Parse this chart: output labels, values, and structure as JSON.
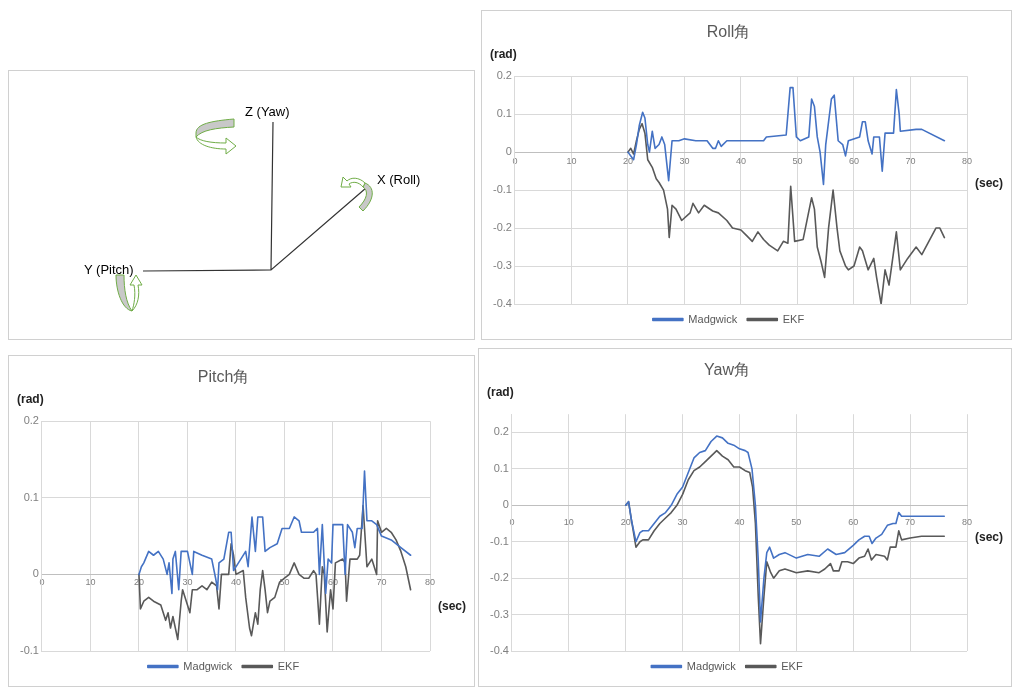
{
  "chart_data": [
    {
      "type": "other",
      "annotations": [
        "Z (Yaw)",
        "X (Roll)",
        "Y (Pitch)"
      ]
    },
    {
      "type": "line",
      "title": "Roll角",
      "xlabel": "(sec)",
      "ylabel": "(rad)",
      "xlim": [
        0,
        80
      ],
      "xticks": [
        0,
        10,
        20,
        30,
        40,
        50,
        60,
        70,
        80
      ],
      "ylim": [
        -0.4,
        0.2
      ],
      "yticks": [
        -0.4,
        -0.3,
        -0.2,
        -0.1,
        0,
        0.1,
        0.2
      ],
      "grid": true,
      "legend": "bottom",
      "marker": "none",
      "series": [
        {
          "name": "Madgwick",
          "color": "#4472c4",
          "x": [
            20,
            20.5,
            21,
            21.5,
            22,
            22.6,
            23,
            23.5,
            23.8,
            24.3,
            24.8,
            25.5,
            26,
            26.5,
            27.2,
            27.8,
            29,
            30,
            32,
            34,
            35,
            35.5,
            36,
            36.5,
            37.5,
            40,
            44,
            44.5,
            48,
            48.7,
            49.2,
            49.8,
            50.5,
            52,
            52.5,
            53,
            53.5,
            54,
            54.6,
            55,
            56,
            56.5,
            57.2,
            58,
            58.5,
            59,
            61,
            61.5,
            62,
            62.5,
            63.2,
            63.5,
            64.5,
            65,
            65.5,
            67,
            67.5,
            68,
            68.2,
            71,
            72,
            76
          ],
          "values": [
            0,
            -0.01,
            -0.02,
            0.02,
            0.07,
            0.105,
            0.09,
            0.02,
            0.0,
            0.055,
            0.01,
            0.02,
            0.04,
            0.02,
            -0.075,
            0.03,
            0.03,
            0.035,
            0.03,
            0.03,
            0.01,
            0.01,
            0.03,
            0.015,
            0.03,
            0.03,
            0.03,
            0.04,
            0.045,
            0.17,
            0.17,
            0.04,
            0.03,
            0.04,
            0.14,
            0.12,
            0.04,
            0.0,
            -0.085,
            0.02,
            0.14,
            0.15,
            0.03,
            0.02,
            -0.01,
            0.03,
            0.04,
            0.08,
            0.08,
            0.03,
            -0.005,
            0.04,
            0.04,
            -0.05,
            0.05,
            0.05,
            0.165,
            0.1,
            0.055,
            0.06,
            0.06,
            0.03
          ]
        },
        {
          "name": "EKF",
          "color": "#595959",
          "x": [
            20,
            20.5,
            21,
            21.5,
            22,
            22.5,
            23,
            23.5,
            24.3,
            25,
            25.5,
            26.3,
            27,
            27.3,
            27.8,
            28.5,
            29.5,
            31,
            31.5,
            32.5,
            33.5,
            35,
            36,
            37.5,
            38.5,
            40,
            41,
            42,
            43,
            44,
            45,
            46.5,
            47.5,
            48.3,
            48.8,
            49.5,
            51,
            52.5,
            53,
            53.5,
            54.2,
            54.8,
            55.5,
            56.3,
            57,
            57.5,
            58.5,
            59,
            60,
            61,
            61.5,
            62.5,
            63.5,
            64,
            64.8,
            65.5,
            66.2,
            67.5,
            68.2,
            69.5,
            71,
            72,
            74.5,
            75.2,
            76
          ],
          "values": [
            0,
            0.01,
            -0.005,
            0.03,
            0.06,
            0.075,
            0.05,
            -0.02,
            -0.04,
            -0.07,
            -0.08,
            -0.1,
            -0.15,
            -0.225,
            -0.14,
            -0.15,
            -0.18,
            -0.16,
            -0.135,
            -0.16,
            -0.14,
            -0.155,
            -0.16,
            -0.18,
            -0.2,
            -0.205,
            -0.22,
            -0.235,
            -0.21,
            -0.23,
            -0.245,
            -0.26,
            -0.235,
            -0.24,
            -0.09,
            -0.235,
            -0.23,
            -0.12,
            -0.15,
            -0.25,
            -0.29,
            -0.33,
            -0.2,
            -0.1,
            -0.2,
            -0.26,
            -0.3,
            -0.31,
            -0.3,
            -0.25,
            -0.26,
            -0.31,
            -0.28,
            -0.33,
            -0.4,
            -0.31,
            -0.35,
            -0.21,
            -0.31,
            -0.28,
            -0.25,
            -0.27,
            -0.2,
            -0.2,
            -0.225
          ]
        }
      ]
    },
    {
      "type": "line",
      "title": "Pitch角",
      "xlabel": "(sec)",
      "ylabel": "(rad)",
      "xlim": [
        0,
        80
      ],
      "xticks": [
        0,
        10,
        20,
        30,
        40,
        50,
        60,
        70,
        80
      ],
      "ylim": [
        -0.1,
        0.2
      ],
      "yticks": [
        -0.1,
        0,
        0.1,
        0.2
      ],
      "grid": true,
      "legend": "bottom",
      "marker": "none",
      "series": [
        {
          "name": "Madgwick",
          "color": "#4472c4",
          "x": [
            20,
            20.5,
            21,
            22,
            23,
            24,
            25,
            25.8,
            26.2,
            26.8,
            27,
            27.5,
            28.2,
            28.7,
            30,
            31,
            31.3,
            33,
            35,
            35.8,
            36.2,
            36.5,
            37.5,
            38.5,
            39,
            39.5,
            41,
            42,
            42.5,
            43.3,
            44,
            44.5,
            45.5,
            46,
            47,
            48.5,
            49.5,
            51,
            52,
            53,
            53.5,
            56,
            56.8,
            57.2,
            57.8,
            58.5,
            59,
            59.7,
            60,
            62,
            62.5,
            63,
            64,
            64.5,
            65,
            66,
            66.5,
            67,
            68,
            69,
            70,
            72,
            74,
            76
          ],
          "values": [
            0,
            0.01,
            0.015,
            0.03,
            0.025,
            0.03,
            0.02,
            0.0,
            0.015,
            -0.025,
            0.02,
            0.03,
            -0.02,
            0.03,
            0.03,
            0.0,
            0.03,
            0.025,
            0.02,
            -0.005,
            -0.02,
            0.015,
            0.02,
            0.055,
            0.055,
            0.005,
            0.02,
            0.03,
            0.01,
            0.075,
            0.03,
            0.075,
            0.075,
            0.03,
            0.035,
            0.04,
            0.06,
            0.06,
            0.075,
            0.07,
            0.055,
            0.055,
            0.06,
            0.0,
            0.065,
            -0.025,
            0.02,
            0.015,
            0.065,
            0.065,
            0.0,
            0.065,
            0.055,
            0.035,
            0.06,
            0.06,
            0.135,
            0.07,
            0.07,
            0.065,
            0.05,
            0.045,
            0.035,
            0.025
          ]
        },
        {
          "name": "EKF",
          "color": "#595959",
          "x": [
            20,
            20.3,
            21,
            22,
            23,
            24.5,
            25.5,
            26,
            26.5,
            27,
            28,
            28.7,
            29,
            30,
            30.5,
            31,
            32,
            33,
            34,
            35,
            36,
            36.5,
            37,
            38.5,
            39,
            39.5,
            40,
            41.5,
            42,
            42.8,
            43.2,
            44,
            44.5,
            45,
            45.5,
            46,
            46.5,
            47,
            48,
            49,
            50,
            51,
            52,
            53,
            54,
            55,
            56,
            56.5,
            57.2,
            57.8,
            58.2,
            58.8,
            59.5,
            60,
            60.5,
            62,
            62.5,
            62.8,
            63.5,
            65,
            65.5,
            66.2,
            66.7,
            67,
            68,
            69,
            69.2,
            70,
            71,
            72,
            73,
            74,
            75,
            76
          ],
          "values": [
            0,
            -0.045,
            -0.035,
            -0.03,
            -0.035,
            -0.04,
            -0.06,
            -0.05,
            -0.07,
            -0.055,
            -0.085,
            -0.035,
            -0.02,
            -0.04,
            -0.05,
            -0.02,
            -0.02,
            -0.015,
            -0.02,
            -0.01,
            -0.015,
            -0.045,
            0.0,
            0.0,
            0.04,
            0.025,
            0.0,
            0.005,
            -0.03,
            -0.07,
            -0.08,
            -0.05,
            -0.065,
            -0.02,
            0.005,
            -0.02,
            -0.05,
            -0.035,
            -0.03,
            -0.01,
            -0.005,
            0.0,
            0.015,
            0.0,
            -0.005,
            -0.005,
            0.005,
            0.0,
            -0.065,
            0.01,
            0.0,
            -0.075,
            -0.02,
            -0.045,
            0.015,
            0.02,
            0.015,
            -0.035,
            0.02,
            0.02,
            0.025,
            0.09,
            0.04,
            0.01,
            0.02,
            0.0,
            0.07,
            0.055,
            0.06,
            0.055,
            0.045,
            0.03,
            0.01,
            -0.02
          ]
        }
      ]
    },
    {
      "type": "line",
      "title": "Yaw角",
      "xlabel": "(sec)",
      "ylabel": "(rad)",
      "xlim": [
        0,
        80
      ],
      "xticks": [
        0,
        10,
        20,
        30,
        40,
        50,
        60,
        70,
        80
      ],
      "ylim": [
        -0.4,
        0.25
      ],
      "yticks": [
        -0.4,
        -0.3,
        -0.2,
        -0.1,
        0,
        0.1,
        0.2
      ],
      "grid": true,
      "legend": "bottom",
      "marker": "none",
      "series": [
        {
          "name": "Madgwick",
          "color": "#4472c4",
          "x": [
            20,
            20.5,
            21,
            21.8,
            22.5,
            23,
            24,
            25,
            26,
            27,
            28,
            29,
            30,
            31,
            32,
            33,
            34,
            35,
            36,
            37,
            38,
            39,
            40,
            41,
            41.5,
            42.2,
            42.8,
            43.3,
            43.7,
            44.3,
            44.8,
            45.3,
            46,
            47,
            48,
            50,
            52,
            54,
            55.5,
            57,
            58.5,
            60,
            61,
            62,
            62.8,
            63.3,
            64,
            65,
            66,
            67,
            67.5,
            68,
            68.5,
            70,
            76
          ],
          "values": [
            0,
            0.01,
            -0.04,
            -0.1,
            -0.075,
            -0.07,
            -0.07,
            -0.05,
            -0.03,
            -0.02,
            0.0,
            0.03,
            0.05,
            0.09,
            0.13,
            0.145,
            0.15,
            0.175,
            0.19,
            0.185,
            0.17,
            0.165,
            0.155,
            0.15,
            0.145,
            0.1,
            0.0,
            -0.15,
            -0.32,
            -0.2,
            -0.13,
            -0.115,
            -0.145,
            -0.135,
            -0.13,
            -0.145,
            -0.135,
            -0.14,
            -0.12,
            -0.135,
            -0.13,
            -0.11,
            -0.095,
            -0.085,
            -0.085,
            -0.105,
            -0.09,
            -0.08,
            -0.055,
            -0.05,
            -0.05,
            -0.02,
            -0.03,
            -0.03,
            -0.03
          ]
        },
        {
          "name": "EKF",
          "color": "#595959",
          "x": [
            20,
            20.5,
            21,
            21.8,
            22.5,
            23,
            24,
            25,
            26,
            27,
            28,
            29,
            30,
            31,
            32,
            33,
            34,
            35,
            36,
            37,
            38,
            39,
            40,
            41,
            41.8,
            42.3,
            42.8,
            43.3,
            43.7,
            44.3,
            44.8,
            45.5,
            46,
            47,
            48,
            50,
            52,
            54,
            55,
            56,
            56.5,
            57.5,
            58,
            59,
            60,
            61,
            62,
            62.6,
            63.2,
            64,
            65.5,
            66,
            66.5,
            67.5,
            68,
            68.5,
            70,
            72,
            76
          ],
          "values": [
            0,
            0.01,
            -0.04,
            -0.115,
            -0.1,
            -0.095,
            -0.095,
            -0.07,
            -0.05,
            -0.035,
            -0.02,
            0.0,
            0.03,
            0.07,
            0.095,
            0.105,
            0.12,
            0.135,
            0.15,
            0.135,
            0.125,
            0.105,
            0.105,
            0.095,
            0.09,
            0.05,
            -0.05,
            -0.25,
            -0.38,
            -0.25,
            -0.155,
            -0.185,
            -0.2,
            -0.18,
            -0.175,
            -0.185,
            -0.18,
            -0.185,
            -0.175,
            -0.16,
            -0.18,
            -0.18,
            -0.155,
            -0.155,
            -0.16,
            -0.145,
            -0.14,
            -0.12,
            -0.15,
            -0.135,
            -0.14,
            -0.15,
            -0.115,
            -0.115,
            -0.07,
            -0.095,
            -0.09,
            -0.085,
            -0.085
          ]
        }
      ]
    }
  ]
}
